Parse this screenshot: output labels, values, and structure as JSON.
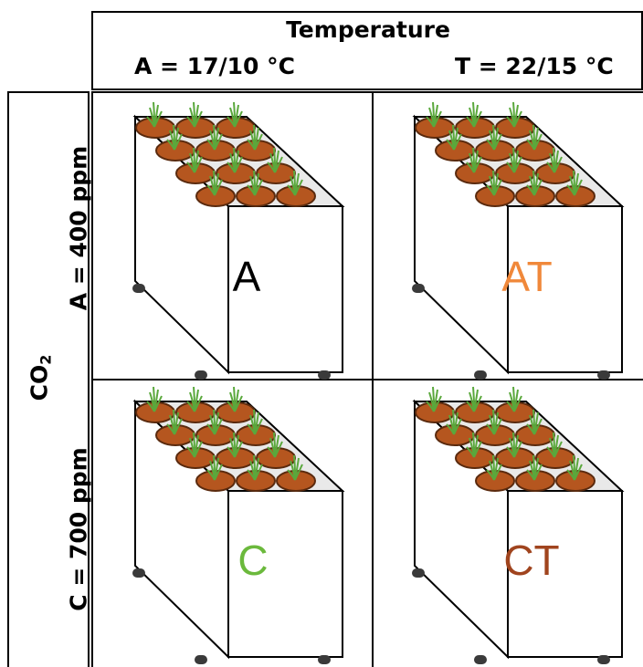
{
  "header": {
    "title": "Temperature",
    "col_left": "A = 17/10 °C",
    "col_right": "T = 22/15 °C"
  },
  "side": {
    "co2_main": "CO",
    "co2_sub": "2",
    "row_top": "A = 400 ppm",
    "row_bottom": "C = 700 ppm"
  },
  "cells": {
    "a": {
      "label": "A",
      "color": "#000000"
    },
    "at": {
      "label": "AT",
      "color": "#f0883a"
    },
    "c": {
      "label": "C",
      "color": "#6bb93c"
    },
    "ct": {
      "label": "CT",
      "color": "#a0441e"
    }
  },
  "colors": {
    "soil": "#b5561f",
    "pot_rim": "#5a2a0e",
    "plant": "#5aa83c",
    "lid": "#e9e9e9"
  }
}
